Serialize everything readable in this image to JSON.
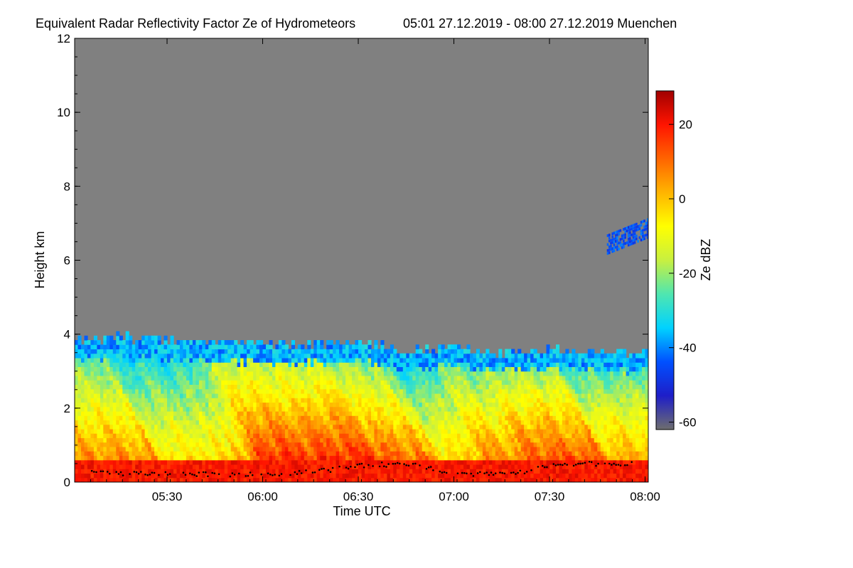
{
  "chart_data": {
    "type": "heatmap",
    "title": "Equivalent Radar Reflectivity Factor Ze of Hydrometeors",
    "subtitle": "05:01 27.12.2019 - 08:00 27.12.2019 Muenchen",
    "xlabel": "Time UTC",
    "ylabel": "Height km",
    "colorbar_label": "Ze dBZ",
    "xlim_minutes_utc": [
      301,
      481
    ],
    "x_ticks": [
      {
        "label": "05:30",
        "value": 330
      },
      {
        "label": "06:00",
        "value": 360
      },
      {
        "label": "06:30",
        "value": 390
      },
      {
        "label": "07:00",
        "value": 420
      },
      {
        "label": "07:30",
        "value": 450
      },
      {
        "label": "08:00",
        "value": 480
      }
    ],
    "ylim": [
      0,
      12
    ],
    "y_ticks": [
      {
        "label": "0",
        "value": 0
      },
      {
        "label": "2",
        "value": 2
      },
      {
        "label": "4",
        "value": 4
      },
      {
        "label": "6",
        "value": 6
      },
      {
        "label": "8",
        "value": 8
      },
      {
        "label": "10",
        "value": 10
      },
      {
        "label": "12",
        "value": 12
      }
    ],
    "colorbar_range": [
      -62,
      29
    ],
    "colorbar_ticks": [
      {
        "label": "20",
        "value": 20
      },
      {
        "label": "0",
        "value": 0
      },
      {
        "label": "-20",
        "value": -20
      },
      {
        "label": "-40",
        "value": -40
      },
      {
        "label": "-60",
        "value": -60
      }
    ],
    "colormap": [
      "#6e6e6e",
      "#1e1ec8",
      "#0050ff",
      "#00d2ff",
      "#4fe6b0",
      "#c8f040",
      "#ffff00",
      "#ffb400",
      "#ff6400",
      "#ff1400",
      "#a00000"
    ],
    "background_color": "#808080",
    "echo_top_km": [
      {
        "t": 301,
        "h": 3.8
      },
      {
        "t": 315,
        "h": 3.85
      },
      {
        "t": 330,
        "h": 3.8
      },
      {
        "t": 345,
        "h": 3.7
      },
      {
        "t": 360,
        "h": 3.7
      },
      {
        "t": 375,
        "h": 3.65
      },
      {
        "t": 390,
        "h": 3.75
      },
      {
        "t": 405,
        "h": 3.5
      },
      {
        "t": 420,
        "h": 3.6
      },
      {
        "t": 435,
        "h": 3.45
      },
      {
        "t": 450,
        "h": 3.55
      },
      {
        "t": 465,
        "h": 3.45
      },
      {
        "t": 481,
        "h": 3.45
      }
    ],
    "upper_echo": {
      "t_range": [
        468,
        481
      ],
      "h_range": [
        6.2,
        7.1
      ],
      "ze_dbz": -45
    },
    "cloud_base_km": [
      {
        "t": 301,
        "h": 0.25
      },
      {
        "t": 330,
        "h": 0.22
      },
      {
        "t": 360,
        "h": 0.2
      },
      {
        "t": 380,
        "h": 0.32
      },
      {
        "t": 395,
        "h": 0.48
      },
      {
        "t": 410,
        "h": 0.45
      },
      {
        "t": 420,
        "h": 0.2
      },
      {
        "t": 440,
        "h": 0.25
      },
      {
        "t": 455,
        "h": 0.5
      },
      {
        "t": 475,
        "h": 0.5
      }
    ]
  }
}
